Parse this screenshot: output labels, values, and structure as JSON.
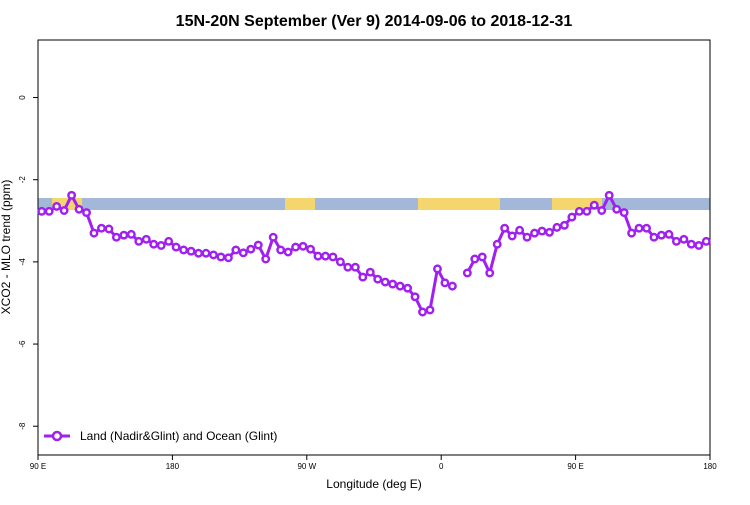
{
  "chart_data": {
    "type": "line",
    "title": "15N-20N September (Ver 9)   2014-09-06 to 2018-12-31",
    "x_label": "Longitude (deg E)",
    "y_label": "XCO2 - MLO trend (ppm)",
    "xlim": [
      90,
      540
    ],
    "xticks": [
      {
        "value": 90,
        "label": "90 E"
      },
      180,
      {
        "value": 270,
        "label": "90 W"
      },
      {
        "value": 360,
        "label": "0"
      },
      {
        "value": 450,
        "label": "90 E"
      },
      {
        "value": 540,
        "label": "180"
      }
    ],
    "ylim": [
      -8.7,
      1.4
    ],
    "yticks": [
      -8,
      -6,
      -4,
      -2,
      0
    ],
    "legend": "bottom-left",
    "x": [
      92.5,
      97.5,
      102.5,
      107.5,
      112.5,
      117.5,
      122.5,
      127.5,
      132.5,
      137.5,
      142.5,
      147.5,
      152.5,
      157.5,
      162.5,
      167.5,
      172.5,
      177.5,
      182.5,
      187.5,
      192.5,
      197.5,
      202.5,
      207.5,
      212.5,
      217.5,
      222.5,
      227.5,
      232.5,
      237.5,
      242.5,
      247.5,
      252.5,
      257.5,
      262.5,
      267.5,
      272.5,
      277.5,
      282.5,
      287.5,
      292.5,
      297.5,
      302.5,
      307.5,
      312.5,
      317.5,
      322.5,
      327.5,
      332.5,
      337.5,
      342.5,
      347.5,
      352.5,
      357.5,
      362.5,
      367.5,
      372.5,
      377.5,
      382.5,
      387.5,
      392.5,
      397.5,
      402.5,
      407.5,
      412.5,
      417.5,
      422.5,
      427.5,
      432.5,
      437.5,
      442.5,
      447.5,
      452.5,
      457.5,
      462.5,
      467.5,
      472.5,
      477.5,
      482.5,
      487.5,
      492.5,
      497.5,
      502.5,
      507.5,
      512.5,
      517.5,
      522.5,
      527.5,
      532.5,
      537.5
    ],
    "series": [
      {
        "name": "Land (Nadir&Glint) and Ocean (Glint)",
        "color": "#a020f0",
        "values": [
          -2.77,
          -2.77,
          -2.65,
          -2.75,
          -2.38,
          -2.72,
          -2.8,
          -3.3,
          -3.18,
          -3.2,
          -3.4,
          -3.35,
          -3.33,
          -3.5,
          -3.45,
          -3.57,
          -3.6,
          -3.5,
          -3.64,
          -3.71,
          -3.74,
          -3.79,
          -3.79,
          -3.83,
          -3.88,
          -3.9,
          -3.71,
          -3.78,
          -3.69,
          -3.59,
          -3.93,
          -3.4,
          -3.71,
          -3.76,
          -3.64,
          -3.62,
          -3.69,
          -3.86,
          -3.86,
          -3.88,
          -4.0,
          -4.13,
          -4.13,
          -4.37,
          -4.25,
          -4.42,
          -4.49,
          -4.54,
          -4.59,
          -4.64,
          -4.85,
          -5.22,
          -5.17,
          -4.17,
          -4.51,
          -4.59,
          null,
          -4.27,
          -3.93,
          -3.88,
          -4.27,
          -3.57,
          -3.18,
          -3.37,
          -3.23,
          -3.4,
          -3.3,
          -3.25,
          -3.28,
          -3.16,
          -3.11,
          -2.91,
          -2.77,
          -2.77,
          -2.62,
          -2.75,
          -2.38,
          -2.72,
          -2.8,
          -3.3,
          -3.18,
          -3.18,
          -3.4,
          -3.35,
          -3.33,
          -3.5,
          -3.45,
          -3.57,
          -3.6,
          -3.5
        ]
      }
    ]
  }
}
